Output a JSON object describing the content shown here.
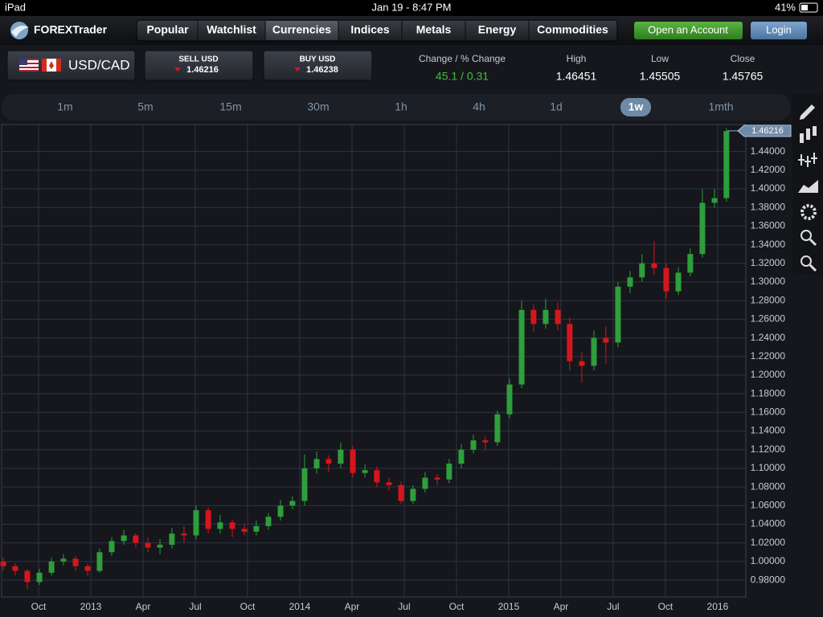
{
  "status_bar": {
    "device": "iPad",
    "time": "Jan 19 - 8:47 PM",
    "battery": "41%"
  },
  "header": {
    "logo": "FOREXTrader",
    "tabs": [
      "Popular",
      "Watchlist",
      "Currencies",
      "Indices",
      "Metals",
      "Energy",
      "Commodities"
    ],
    "active_tab": "Currencies",
    "open_account": "Open an Account",
    "login": "Login"
  },
  "quote": {
    "pair": "USD/CAD",
    "sell_label": "SELL USD",
    "sell_price": "1.46216",
    "buy_label": "BUY USD",
    "buy_price": "1.46238",
    "change_label": "Change / % Change",
    "change": "45.1 / 0.31",
    "high_label": "High",
    "high": "1.46451",
    "low_label": "Low",
    "low": "1.45505",
    "close_label": "Close",
    "close": "1.45765"
  },
  "timeframes": {
    "options": [
      "1m",
      "5m",
      "15m",
      "30m",
      "1h",
      "4h",
      "1d",
      "1w",
      "1mth"
    ],
    "active": "1w"
  },
  "chart_data": {
    "type": "candlestick",
    "up_color": "#2f9e3c",
    "down_color": "#d8151d",
    "grid": true,
    "xlim": [
      2012.573,
      2016.135
    ],
    "ylim": [
      0.962,
      1.469
    ],
    "xticks": [
      {
        "value": 2012.75,
        "label": "Oct"
      },
      {
        "value": 2013,
        "label": "2013"
      },
      {
        "value": 2013.25,
        "label": "Apr"
      },
      {
        "value": 2013.5,
        "label": "Jul"
      },
      {
        "value": 2013.75,
        "label": "Oct"
      },
      {
        "value": 2014,
        "label": "2014"
      },
      {
        "value": 2014.25,
        "label": "Apr"
      },
      {
        "value": 2014.5,
        "label": "Jul"
      },
      {
        "value": 2014.75,
        "label": "Oct"
      },
      {
        "value": 2015,
        "label": "2015"
      },
      {
        "value": 2015.25,
        "label": "Apr"
      },
      {
        "value": 2015.5,
        "label": "Jul"
      },
      {
        "value": 2015.75,
        "label": "Oct"
      },
      {
        "value": 2016,
        "label": "2016"
      }
    ],
    "yticks": [
      {
        "value": 0.98,
        "label": "0.98000"
      },
      {
        "value": 1.0,
        "label": "1.00000"
      },
      {
        "value": 1.02,
        "label": "1.02000"
      },
      {
        "value": 1.04,
        "label": "1.04000"
      },
      {
        "value": 1.06,
        "label": "1.06000"
      },
      {
        "value": 1.08,
        "label": "1.08000"
      },
      {
        "value": 1.1,
        "label": "1.10000"
      },
      {
        "value": 1.12,
        "label": "1.12000"
      },
      {
        "value": 1.14,
        "label": "1.14000"
      },
      {
        "value": 1.16,
        "label": "1.16000"
      },
      {
        "value": 1.18,
        "label": "1.18000"
      },
      {
        "value": 1.2,
        "label": "1.20000"
      },
      {
        "value": 1.22,
        "label": "1.22000"
      },
      {
        "value": 1.24,
        "label": "1.24000"
      },
      {
        "value": 1.26,
        "label": "1.26000"
      },
      {
        "value": 1.28,
        "label": "1.28000"
      },
      {
        "value": 1.3,
        "label": "1.30000"
      },
      {
        "value": 1.32,
        "label": "1.32000"
      },
      {
        "value": 1.34,
        "label": "1.34000"
      },
      {
        "value": 1.36,
        "label": "1.36000"
      },
      {
        "value": 1.38,
        "label": "1.38000"
      },
      {
        "value": 1.4,
        "label": "1.40000"
      },
      {
        "value": 1.42,
        "label": "1.42000"
      },
      {
        "value": 1.44,
        "label": "1.44000"
      }
    ],
    "last_price": 1.46216,
    "x": [
      2012.581,
      2012.638,
      2012.696,
      2012.754,
      2012.812,
      2012.869,
      2012.927,
      2012.985,
      2013.042,
      2013.1,
      2013.158,
      2013.215,
      2013.273,
      2013.331,
      2013.388,
      2013.446,
      2013.504,
      2013.562,
      2013.619,
      2013.677,
      2013.735,
      2013.792,
      2013.85,
      2013.908,
      2013.965,
      2014.023,
      2014.081,
      2014.138,
      2014.196,
      2014.254,
      2014.312,
      2014.369,
      2014.427,
      2014.485,
      2014.542,
      2014.6,
      2014.658,
      2014.715,
      2014.773,
      2014.831,
      2014.888,
      2014.946,
      2015.004,
      2015.062,
      2015.119,
      2015.177,
      2015.235,
      2015.292,
      2015.35,
      2015.408,
      2015.465,
      2015.523,
      2015.581,
      2015.638,
      2015.696,
      2015.754,
      2015.812,
      2015.869,
      2015.927,
      2015.985,
      2016.042
    ],
    "ohlc": [
      [
        1.0,
        1.004,
        0.99,
        0.995
      ],
      [
        0.995,
        0.998,
        0.985,
        0.99
      ],
      [
        0.99,
        0.992,
        0.97,
        0.978
      ],
      [
        0.978,
        0.992,
        0.975,
        0.988
      ],
      [
        0.988,
        1.004,
        0.985,
        1.0
      ],
      [
        1.0,
        1.008,
        0.996,
        1.003
      ],
      [
        1.003,
        1.006,
        0.99,
        0.995
      ],
      [
        0.995,
        0.998,
        0.984,
        0.99
      ],
      [
        0.99,
        1.014,
        0.988,
        1.01
      ],
      [
        1.01,
        1.026,
        1.006,
        1.022
      ],
      [
        1.022,
        1.034,
        1.018,
        1.028
      ],
      [
        1.028,
        1.031,
        1.015,
        1.02
      ],
      [
        1.02,
        1.026,
        1.01,
        1.015
      ],
      [
        1.015,
        1.024,
        1.008,
        1.018
      ],
      [
        1.018,
        1.036,
        1.014,
        1.03
      ],
      [
        1.03,
        1.038,
        1.02,
        1.028
      ],
      [
        1.028,
        1.06,
        1.024,
        1.055
      ],
      [
        1.055,
        1.058,
        1.03,
        1.035
      ],
      [
        1.035,
        1.05,
        1.03,
        1.042
      ],
      [
        1.042,
        1.045,
        1.026,
        1.035
      ],
      [
        1.035,
        1.04,
        1.028,
        1.032
      ],
      [
        1.032,
        1.044,
        1.028,
        1.038
      ],
      [
        1.038,
        1.052,
        1.034,
        1.048
      ],
      [
        1.048,
        1.066,
        1.044,
        1.06
      ],
      [
        1.06,
        1.07,
        1.056,
        1.065
      ],
      [
        1.065,
        1.115,
        1.06,
        1.1
      ],
      [
        1.1,
        1.118,
        1.094,
        1.11
      ],
      [
        1.11,
        1.114,
        1.096,
        1.105
      ],
      [
        1.105,
        1.128,
        1.1,
        1.12
      ],
      [
        1.12,
        1.124,
        1.09,
        1.095
      ],
      [
        1.095,
        1.104,
        1.09,
        1.098
      ],
      [
        1.098,
        1.102,
        1.08,
        1.085
      ],
      [
        1.085,
        1.09,
        1.076,
        1.082
      ],
      [
        1.082,
        1.086,
        1.062,
        1.065
      ],
      [
        1.065,
        1.082,
        1.062,
        1.078
      ],
      [
        1.078,
        1.096,
        1.074,
        1.09
      ],
      [
        1.09,
        1.094,
        1.082,
        1.088
      ],
      [
        1.088,
        1.11,
        1.084,
        1.105
      ],
      [
        1.105,
        1.126,
        1.1,
        1.12
      ],
      [
        1.12,
        1.136,
        1.116,
        1.13
      ],
      [
        1.13,
        1.134,
        1.12,
        1.128
      ],
      [
        1.128,
        1.162,
        1.124,
        1.158
      ],
      [
        1.158,
        1.196,
        1.154,
        1.19
      ],
      [
        1.19,
        1.28,
        1.186,
        1.27
      ],
      [
        1.27,
        1.276,
        1.246,
        1.255
      ],
      [
        1.255,
        1.282,
        1.25,
        1.27
      ],
      [
        1.27,
        1.278,
        1.248,
        1.255
      ],
      [
        1.255,
        1.262,
        1.205,
        1.215
      ],
      [
        1.215,
        1.225,
        1.192,
        1.21
      ],
      [
        1.21,
        1.248,
        1.205,
        1.24
      ],
      [
        1.24,
        1.252,
        1.212,
        1.235
      ],
      [
        1.235,
        1.3,
        1.23,
        1.295
      ],
      [
        1.295,
        1.312,
        1.288,
        1.305
      ],
      [
        1.305,
        1.33,
        1.3,
        1.32
      ],
      [
        1.32,
        1.344,
        1.308,
        1.315
      ],
      [
        1.315,
        1.32,
        1.282,
        1.29
      ],
      [
        1.29,
        1.316,
        1.286,
        1.31
      ],
      [
        1.31,
        1.336,
        1.306,
        1.33
      ],
      [
        1.33,
        1.4,
        1.326,
        1.385
      ],
      [
        1.385,
        1.4,
        1.38,
        1.39
      ],
      [
        1.39,
        1.465,
        1.386,
        1.462
      ]
    ]
  }
}
